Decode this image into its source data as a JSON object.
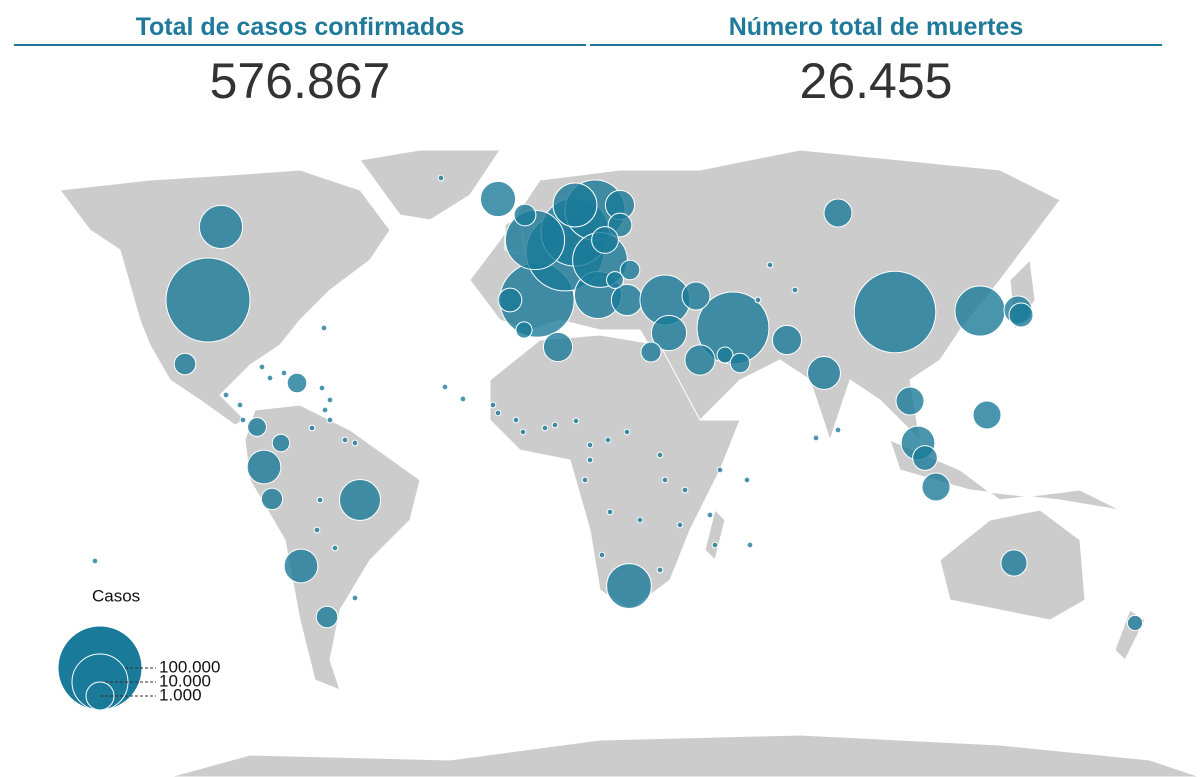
{
  "header": {
    "cases_title": "Total de casos confirmados",
    "cases_total": "576.867",
    "deaths_title": "Número total de muertes",
    "deaths_total": "26.455"
  },
  "map": {
    "bubble_color": "#1a7a99",
    "legend": {
      "title": "Casos",
      "ticks": [
        {
          "value": 100000,
          "label": "100.000"
        },
        {
          "value": 10000,
          "label": "10.000"
        },
        {
          "value": 1000,
          "label": "1.000"
        }
      ]
    },
    "bubbles": [
      100000,
      3500,
      590,
      500,
      470,
      420,
      1600,
      580,
      2900,
      1600,
      590,
      45000,
      60000,
      27000,
      14000,
      3700,
      4800,
      1100,
      700,
      13000,
      9000,
      1800,
      1300,
      900,
      600,
      500,
      400,
      700,
      6100,
      37000,
      1800,
      520,
      1200,
      1000,
      1100,
      1500,
      1000,
      82000,
      6100,
      1000,
      720,
      1000,
      1600,
      760,
      1000,
      1000,
      860,
      4000,
      350,
      1100,
      380,
      370,
      500,
      160,
      160,
      160,
      160,
      160,
      160,
      160,
      160,
      160,
      160,
      160,
      160,
      160,
      160,
      160,
      160,
      160,
      160,
      160,
      160,
      160,
      160,
      160,
      160,
      160,
      160,
      160,
      160,
      160,
      160,
      160,
      160,
      160,
      160,
      160,
      160,
      160,
      160,
      160,
      160,
      160,
      160,
      160,
      160,
      160,
      160,
      160,
      160,
      160,
      160,
      160,
      160
    ]
  }
}
